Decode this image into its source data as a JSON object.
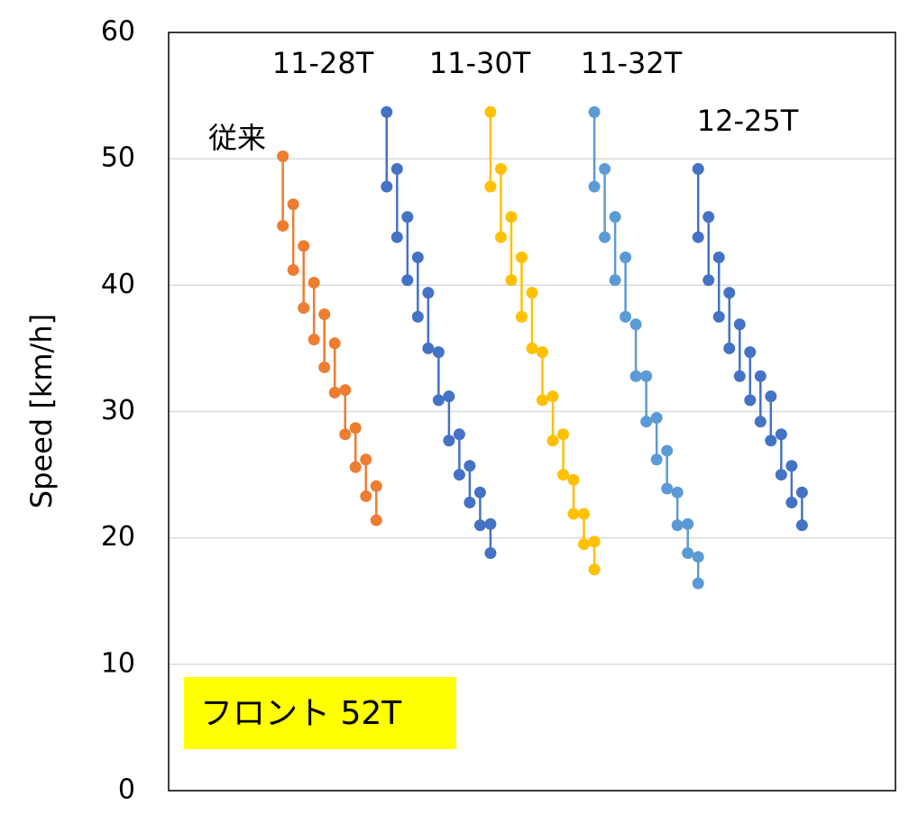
{
  "chart_data": {
    "type": "line",
    "ylabel": "Speed [km/h]",
    "annotation": "フロント 52T",
    "ylim": [
      0,
      60
    ],
    "yticks": [
      0,
      10,
      20,
      30,
      40,
      50,
      60
    ],
    "xlim": [
      0,
      70
    ],
    "grid": true,
    "series": [
      {
        "name": "従来",
        "color": "#ed7d31",
        "x": [
          11,
          11,
          null,
          12,
          12,
          null,
          13,
          13,
          null,
          14,
          14,
          null,
          15,
          15,
          null,
          16,
          16,
          null,
          17,
          17,
          null,
          18,
          18,
          null,
          19,
          19,
          null,
          20,
          20
        ],
        "values": [
          50.2,
          44.7,
          null,
          46.4,
          41.2,
          null,
          43.1,
          38.2,
          null,
          40.2,
          35.7,
          null,
          37.7,
          33.5,
          null,
          35.4,
          31.5,
          null,
          31.7,
          28.2,
          null,
          28.7,
          25.6,
          null,
          26.2,
          23.3,
          null,
          24.1,
          21.4
        ]
      },
      {
        "name": "11-28T",
        "color": "#4472c4",
        "x": [
          21,
          21,
          null,
          22,
          22,
          null,
          23,
          23,
          null,
          24,
          24,
          null,
          25,
          25,
          null,
          26,
          26,
          null,
          27,
          27,
          null,
          28,
          28,
          null,
          29,
          29,
          null,
          30,
          30,
          null,
          31,
          31
        ],
        "values": [
          53.7,
          47.8,
          null,
          49.2,
          43.8,
          null,
          45.4,
          40.4,
          null,
          42.2,
          37.5,
          null,
          39.4,
          35.0,
          null,
          34.7,
          30.9,
          null,
          31.2,
          27.7,
          null,
          28.2,
          25.0,
          null,
          25.7,
          22.8,
          null,
          23.6,
          21.0,
          null,
          21.1,
          18.8
        ]
      },
      {
        "name": "11-30T",
        "color": "#ffc000",
        "x": [
          31,
          31,
          null,
          32,
          32,
          null,
          33,
          33,
          null,
          34,
          34,
          null,
          35,
          35,
          null,
          36,
          36,
          null,
          37,
          37,
          null,
          38,
          38,
          null,
          39,
          39,
          null,
          40,
          40,
          null,
          41,
          41
        ],
        "values": [
          53.7,
          47.8,
          null,
          49.2,
          43.8,
          null,
          45.4,
          40.4,
          null,
          42.2,
          37.5,
          null,
          39.4,
          35.0,
          null,
          34.7,
          30.9,
          null,
          31.2,
          27.7,
          null,
          28.2,
          25.0,
          null,
          24.6,
          21.9,
          null,
          21.9,
          19.5,
          null,
          19.7,
          17.5
        ]
      },
      {
        "name": "11-32T",
        "color": "#5b9bd5",
        "x": [
          41,
          41,
          null,
          42,
          42,
          null,
          43,
          43,
          null,
          44,
          44,
          null,
          45,
          45,
          null,
          46,
          46,
          null,
          47,
          47,
          null,
          48,
          48,
          null,
          49,
          49,
          null,
          50,
          50,
          null,
          51,
          51
        ],
        "values": [
          53.7,
          47.8,
          null,
          49.2,
          43.8,
          null,
          45.4,
          40.4,
          null,
          42.2,
          37.5,
          null,
          36.9,
          32.8,
          null,
          32.8,
          29.2,
          null,
          29.5,
          26.2,
          null,
          26.9,
          23.9,
          null,
          23.6,
          21.0,
          null,
          21.1,
          18.8,
          null,
          18.5,
          16.4
        ]
      },
      {
        "name": "12-25T",
        "color": "#4472c4",
        "x": [
          51,
          51,
          null,
          52,
          52,
          null,
          53,
          53,
          null,
          54,
          54,
          null,
          55,
          55,
          null,
          56,
          56,
          null,
          57,
          57,
          null,
          58,
          58,
          null,
          59,
          59,
          null,
          60,
          60,
          null,
          61,
          61
        ],
        "values": [
          49.2,
          43.8,
          null,
          45.4,
          40.4,
          null,
          42.2,
          37.5,
          null,
          39.4,
          35.0,
          null,
          36.9,
          32.8,
          null,
          34.7,
          30.9,
          null,
          32.8,
          29.2,
          null,
          31.2,
          27.7,
          null,
          28.2,
          25.0,
          null,
          25.7,
          22.8,
          null,
          23.6,
          21.0
        ]
      }
    ]
  }
}
